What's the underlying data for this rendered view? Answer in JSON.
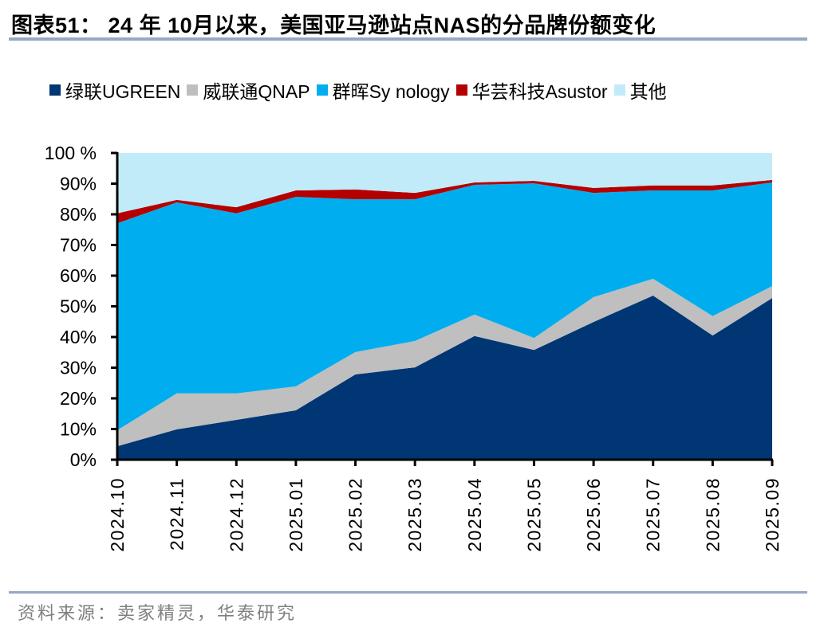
{
  "header": {
    "title": "图表51： 24 年 10月以来，美国亚马逊站点NAS的分品牌份额变化"
  },
  "footer": {
    "source": "资料来源：卖家精灵，华泰研究"
  },
  "colors": {
    "ugreen": "#003673",
    "qnap": "#bfbfbf",
    "synology": "#00aeef",
    "asustor": "#b40000",
    "others": "#c2ebfa",
    "rule": "#95a9c4"
  },
  "chart_data": {
    "type": "area",
    "stacked": true,
    "title": "24 年 10月以来，美国亚马逊站点NAS的分品牌份额变化",
    "xlabel": "",
    "ylabel": "",
    "ylim": [
      0,
      100
    ],
    "y_ticks": [
      "0%",
      "10%",
      "20%",
      "30%",
      "40%",
      "50%",
      "60%",
      "70%",
      "80%",
      "90%",
      "100 %"
    ],
    "y_tick_values": [
      0,
      10,
      20,
      30,
      40,
      50,
      60,
      70,
      80,
      90,
      100
    ],
    "grid": false,
    "legend_position": "top",
    "categories": [
      "2024.10",
      "2024.11",
      "2024.12",
      "2025.01",
      "2025.02",
      "2025.03",
      "2025.04",
      "2025.05",
      "2025.06",
      "2025.07",
      "2025.08",
      "2025.09"
    ],
    "series": [
      {
        "name": "绿联UGREEN",
        "color_key": "ugreen",
        "values": [
          4.4,
          9.9,
          13.0,
          16.1,
          27.8,
          30.1,
          40.3,
          35.8,
          44.9,
          53.5,
          40.5,
          52.7
        ]
      },
      {
        "name": "威联通QNAP",
        "color_key": "qnap",
        "values": [
          5.2,
          11.7,
          8.6,
          7.8,
          7.3,
          8.6,
          7.0,
          3.9,
          8.1,
          5.5,
          6.3,
          3.9
        ]
      },
      {
        "name": "群晖Sy nology",
        "color_key": "synology",
        "values": [
          67.5,
          62.3,
          58.7,
          61.8,
          49.8,
          46.2,
          42.3,
          50.4,
          34.0,
          28.8,
          41.0,
          33.8
        ]
      },
      {
        "name": "华芸科技Asustor",
        "color_key": "asustor",
        "values": [
          3.2,
          0.8,
          2.0,
          2.1,
          3.2,
          2.1,
          0.8,
          0.8,
          1.6,
          1.6,
          1.6,
          0.8
        ]
      },
      {
        "name": "其他",
        "color_key": "others",
        "values": [
          19.7,
          15.3,
          17.7,
          12.2,
          11.9,
          13.0,
          9.6,
          9.1,
          11.4,
          10.6,
          10.6,
          8.8
        ]
      }
    ]
  }
}
